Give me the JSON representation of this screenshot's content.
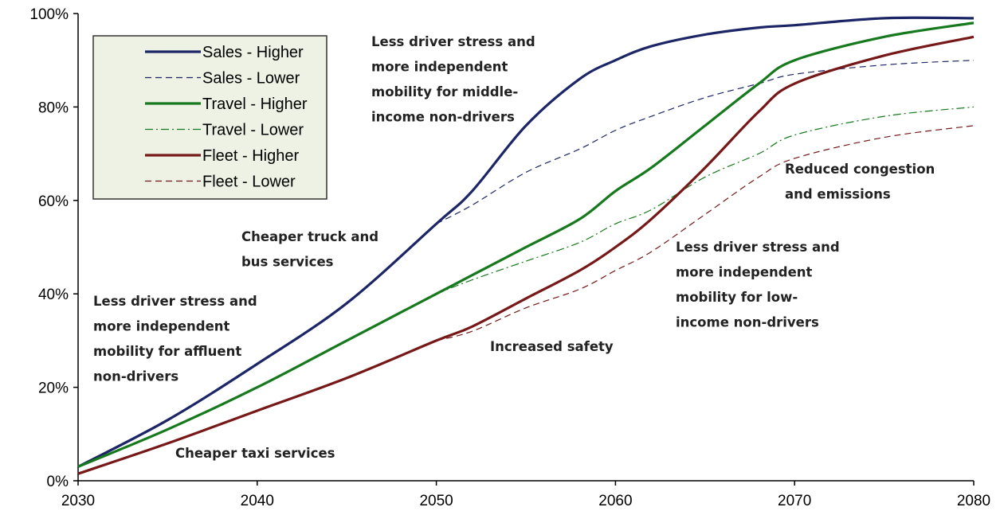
{
  "chart_data": {
    "type": "line",
    "x": [
      2030,
      2035,
      2040,
      2045,
      2050,
      2052,
      2055,
      2058,
      2060,
      2062,
      2065,
      2068,
      2070,
      2075,
      2080
    ],
    "series": [
      {
        "name": "Sales - Higher",
        "color": "#1c2566",
        "style": "solid",
        "values": [
          3,
          13,
          25,
          38,
          55,
          62,
          76,
          86,
          90,
          93,
          95.5,
          97,
          97.5,
          99,
          99
        ]
      },
      {
        "name": "Sales - Lower",
        "color": "#1c2566",
        "style": "dashed",
        "values": [
          null,
          null,
          null,
          null,
          55,
          59,
          66,
          71,
          75,
          78,
          82,
          85,
          87,
          89,
          90
        ]
      },
      {
        "name": "Travel - Higher",
        "color": "#17791d",
        "style": "solid",
        "values": [
          3,
          11,
          20,
          30,
          40,
          44,
          50,
          56,
          62,
          67,
          76,
          85,
          90,
          95,
          98
        ]
      },
      {
        "name": "Travel -  Lower",
        "color": "#17791d",
        "style": "dashdot",
        "values": [
          null,
          null,
          null,
          null,
          40,
          43,
          47,
          51,
          55,
          58,
          65,
          70,
          74,
          78,
          80
        ]
      },
      {
        "name": "Fleet - Higher",
        "color": "#761818",
        "style": "solid",
        "values": [
          1.5,
          8,
          15,
          22,
          30,
          33,
          39,
          45,
          50,
          56,
          67,
          79,
          85,
          91,
          95
        ]
      },
      {
        "name": "Fleet -  Lower",
        "color": "#761818",
        "style": "dashed",
        "values": [
          null,
          null,
          null,
          null,
          30,
          32,
          37,
          41,
          45,
          49,
          57,
          65,
          69,
          73.5,
          76
        ]
      }
    ],
    "xlim": [
      2030,
      2080
    ],
    "xticks": [
      2030,
      2040,
      2050,
      2060,
      2070,
      2080
    ],
    "ylim": [
      0,
      100
    ],
    "yticks": [
      {
        "value": 0,
        "label": "0%"
      },
      {
        "value": 20,
        "label": "20%"
      },
      {
        "value": 40,
        "label": "40%"
      },
      {
        "value": 60,
        "label": "60%"
      },
      {
        "value": 80,
        "label": "80%"
      },
      {
        "value": 100,
        "label": "100%"
      }
    ],
    "grid": false,
    "legend": "upper left",
    "annotations": [
      [
        "Less driver stress and",
        "more independent",
        "mobility for middle-",
        "income non-drivers"
      ],
      [
        "Reduced congestion",
        "and emissions"
      ],
      [
        "Cheaper truck and",
        "bus services"
      ],
      [
        "Less driver stress and",
        "more independent",
        "mobility for low-",
        "income non-drivers"
      ],
      [
        "Less driver stress and",
        "more independent",
        "mobility for affluent",
        "non-drivers"
      ],
      [
        "Increased safety"
      ],
      [
        "Cheaper taxi services"
      ]
    ]
  }
}
